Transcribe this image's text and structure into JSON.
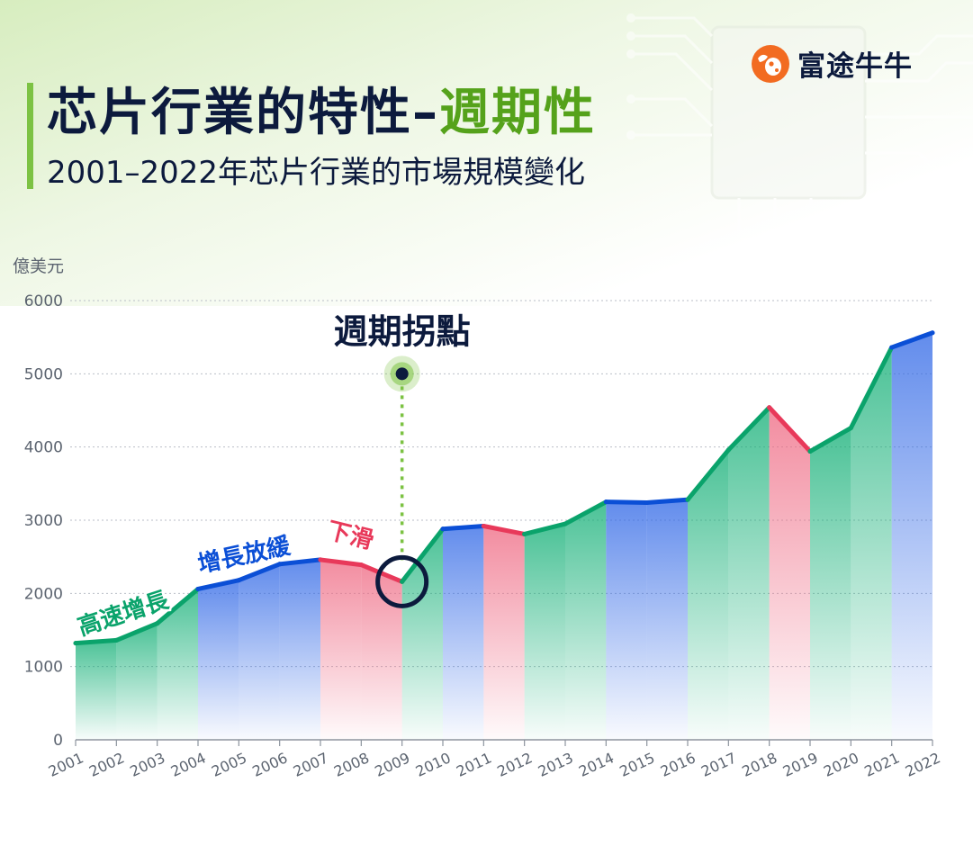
{
  "header": {
    "title_main": "芯片行業的特性–",
    "title_accent": "週期性",
    "subtitle": "2001–2022年芯片行業的市場規模變化"
  },
  "brand": {
    "name": "富途牛牛",
    "color": "#f26b21"
  },
  "colors": {
    "growth_fast": "#0aa36b",
    "growth_slow": "#0b4fd6",
    "decline": "#e8395a",
    "turning_point": "#7cc243",
    "title_dark": "#0c1a3d"
  },
  "annotations": {
    "fast_growth": "高速增長",
    "slow_growth": "增長放緩",
    "decline": "下滑",
    "turning_point": "週期拐點"
  },
  "chart_data": {
    "type": "area",
    "ylabel": "億美元",
    "ylim": [
      0,
      6000
    ],
    "yticks": [
      0,
      1000,
      2000,
      3000,
      4000,
      5000,
      6000
    ],
    "grid": true,
    "x": [
      "2001",
      "2002",
      "2003",
      "2004",
      "2005",
      "2006",
      "2007",
      "2008",
      "2009",
      "2010",
      "2011",
      "2012",
      "2013",
      "2014",
      "2015",
      "2016",
      "2017",
      "2018",
      "2019",
      "2020",
      "2021",
      "2022"
    ],
    "values": [
      1320,
      1360,
      1590,
      2060,
      2180,
      2400,
      2460,
      2390,
      2160,
      2880,
      2920,
      2810,
      2950,
      3250,
      3240,
      3280,
      3960,
      4540,
      3940,
      4260,
      5360,
      5560
    ],
    "segment_phase": [
      "fast",
      "fast",
      "fast",
      "slow",
      "slow",
      "slow",
      "decline",
      "decline",
      "fast",
      "slow",
      "decline",
      "fast",
      "fast",
      "slow",
      "slow",
      "fast",
      "fast",
      "decline",
      "fast",
      "fast",
      "slow"
    ],
    "turning_point": {
      "x": "2009",
      "value": 2160,
      "marker_value": 5000
    }
  }
}
